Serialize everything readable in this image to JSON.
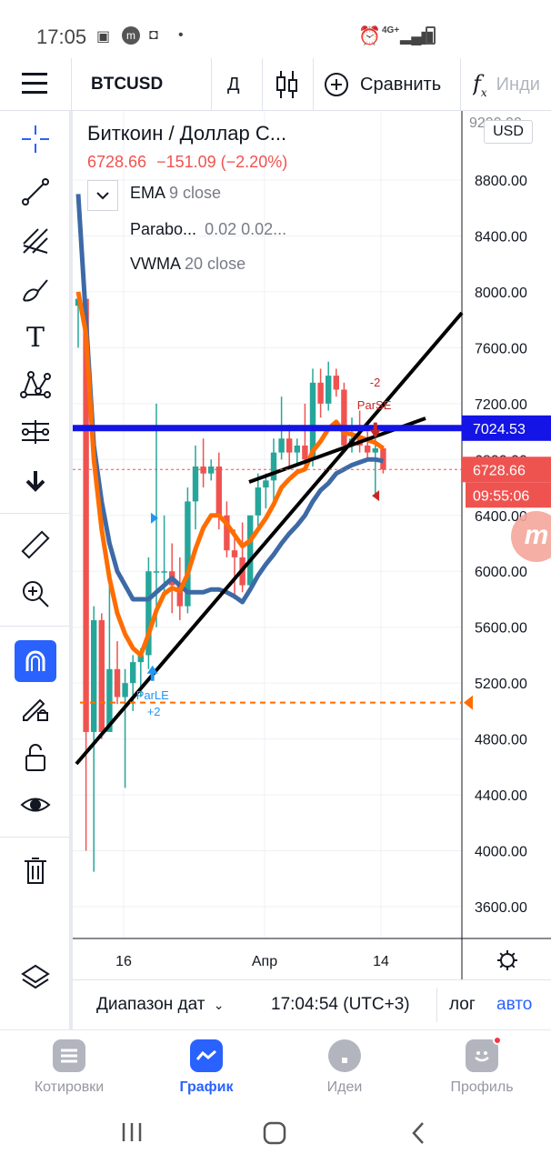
{
  "status_bar": {
    "time": "17:05",
    "network": "4G+"
  },
  "toolbar": {
    "symbol": "BTCUSD",
    "interval": "Д",
    "compare_label": "Сравнить",
    "indicators_label": "Инди"
  },
  "legend": {
    "title": "Биткоин / Доллар С...",
    "price": "6728.66",
    "change": "−151.09 (−2.20%)",
    "indicators": [
      {
        "name": "EMA",
        "params": "9 close"
      },
      {
        "name": "Parabo...",
        "params": "0.02 0.02..."
      },
      {
        "name": "VWMA",
        "params": "20 close"
      }
    ]
  },
  "axis": {
    "currency": "USD",
    "ticks": [
      "8800.00",
      "8400.00",
      "8000.00",
      "7600.00",
      "7200.00",
      "6800.00",
      "6400.00",
      "6000.00",
      "5600.00",
      "5200.00",
      "4800.00",
      "4400.00",
      "4000.00",
      "3600.00"
    ],
    "top_partial": "9200.00",
    "level_label": "7024.53",
    "price_label": "6728.66",
    "countdown": "09:55:06",
    "x_labels": [
      "16",
      "Апр",
      "14"
    ]
  },
  "annotations": {
    "long_label": "ParLE",
    "long_qty": "+2",
    "short_label": "ParSE",
    "short_qty": "-2"
  },
  "bottom_bar": {
    "range_label": "Диапазон дат",
    "time": "17:04:54 (UTC+3)",
    "log_label": "лог",
    "auto_label": "авто"
  },
  "nav": {
    "items": [
      "Котировки",
      "График",
      "Идеи",
      "Профиль"
    ]
  },
  "colors": {
    "up": "#26a69a",
    "down": "#ef5350",
    "ema": "#ff6d00",
    "vwma": "#3d6aa6",
    "level": "#1414e6",
    "accent": "#2962ff"
  },
  "chart_data": {
    "type": "candlestick",
    "y_min": 3400,
    "y_max": 9400,
    "candles": [
      {
        "o": 7900,
        "h": 8000,
        "l": 7600,
        "c": 7950
      },
      {
        "o": 7950,
        "h": 7960,
        "l": 4000,
        "c": 4850
      },
      {
        "o": 4850,
        "h": 5750,
        "l": 3850,
        "c": 5650
      },
      {
        "o": 5650,
        "h": 5700,
        "l": 4800,
        "c": 4850
      },
      {
        "o": 4850,
        "h": 6000,
        "l": 4850,
        "c": 5300
      },
      {
        "o": 5300,
        "h": 5500,
        "l": 5050,
        "c": 5100
      },
      {
        "o": 5100,
        "h": 5300,
        "l": 4450,
        "c": 5200
      },
      {
        "o": 5200,
        "h": 5400,
        "l": 5000,
        "c": 5350
      },
      {
        "o": 5350,
        "h": 5450,
        "l": 5100,
        "c": 5400
      },
      {
        "o": 5400,
        "h": 6100,
        "l": 5300,
        "c": 6000
      },
      {
        "o": 6000,
        "h": 7200,
        "l": 5600,
        "c": 6000
      },
      {
        "o": 6000,
        "h": 6400,
        "l": 5850,
        "c": 6000
      },
      {
        "o": 6000,
        "h": 6200,
        "l": 5700,
        "c": 5900
      },
      {
        "o": 5900,
        "h": 6100,
        "l": 5650,
        "c": 5750
      },
      {
        "o": 5750,
        "h": 6600,
        "l": 5700,
        "c": 6500
      },
      {
        "o": 6500,
        "h": 6900,
        "l": 6300,
        "c": 6750
      },
      {
        "o": 6750,
        "h": 6950,
        "l": 6600,
        "c": 6700
      },
      {
        "o": 6700,
        "h": 6800,
        "l": 6650,
        "c": 6750
      },
      {
        "o": 6750,
        "h": 6850,
        "l": 6300,
        "c": 6400
      },
      {
        "o": 6400,
        "h": 6500,
        "l": 6100,
        "c": 6150
      },
      {
        "o": 6150,
        "h": 6300,
        "l": 5800,
        "c": 6100
      },
      {
        "o": 6100,
        "h": 6350,
        "l": 5850,
        "c": 5900
      },
      {
        "o": 5900,
        "h": 6400,
        "l": 5850,
        "c": 6400
      },
      {
        "o": 6400,
        "h": 6700,
        "l": 6300,
        "c": 6600
      },
      {
        "o": 6600,
        "h": 6700,
        "l": 6450,
        "c": 6650
      },
      {
        "o": 6650,
        "h": 6950,
        "l": 6500,
        "c": 6850
      },
      {
        "o": 6850,
        "h": 7250,
        "l": 6800,
        "c": 6950
      },
      {
        "o": 6950,
        "h": 7050,
        "l": 6750,
        "c": 6850
      },
      {
        "o": 6850,
        "h": 6950,
        "l": 6750,
        "c": 6900
      },
      {
        "o": 6900,
        "h": 7200,
        "l": 6750,
        "c": 6800
      },
      {
        "o": 6800,
        "h": 7450,
        "l": 6750,
        "c": 7350
      },
      {
        "o": 7350,
        "h": 7450,
        "l": 7100,
        "c": 7200
      },
      {
        "o": 7200,
        "h": 7500,
        "l": 7150,
        "c": 7400
      },
      {
        "o": 7400,
        "h": 7450,
        "l": 7250,
        "c": 7300
      },
      {
        "o": 7300,
        "h": 7350,
        "l": 6850,
        "c": 6900
      },
      {
        "o": 6900,
        "h": 7100,
        "l": 6850,
        "c": 6950
      },
      {
        "o": 6950,
        "h": 7150,
        "l": 6850,
        "c": 6900
      },
      {
        "o": 6900,
        "h": 7000,
        "l": 6800,
        "c": 6850
      },
      {
        "o": 6850,
        "h": 6950,
        "l": 6550,
        "c": 6880
      },
      {
        "o": 6880,
        "h": 6900,
        "l": 6700,
        "c": 6728.66
      }
    ],
    "ema": [
      8000,
      7700,
      6800,
      6300,
      5950,
      5700,
      5550,
      5450,
      5400,
      5550,
      5720,
      5840,
      5880,
      5860,
      5980,
      6160,
      6310,
      6400,
      6400,
      6340,
      6260,
      6180,
      6220,
      6300,
      6380,
      6480,
      6600,
      6660,
      6710,
      6730,
      6860,
      6930,
      7020,
      7070,
      6990,
      6980,
      6960,
      6940,
      6920,
      6880
    ],
    "vwma": [
      8700,
      7800,
      6900,
      6500,
      6200,
      6000,
      5900,
      5800,
      5800,
      5800,
      5850,
      5900,
      5950,
      5900,
      5850,
      5850,
      5850,
      5870,
      5870,
      5850,
      5820,
      5780,
      5870,
      5970,
      6050,
      6120,
      6200,
      6270,
      6330,
      6400,
      6500,
      6580,
      6630,
      6700,
      6730,
      6760,
      6780,
      6800,
      6800,
      6790
    ],
    "levels": [
      {
        "price": 7024.53
      },
      {
        "price": 6728.66
      },
      {
        "price": 5060
      }
    ]
  }
}
